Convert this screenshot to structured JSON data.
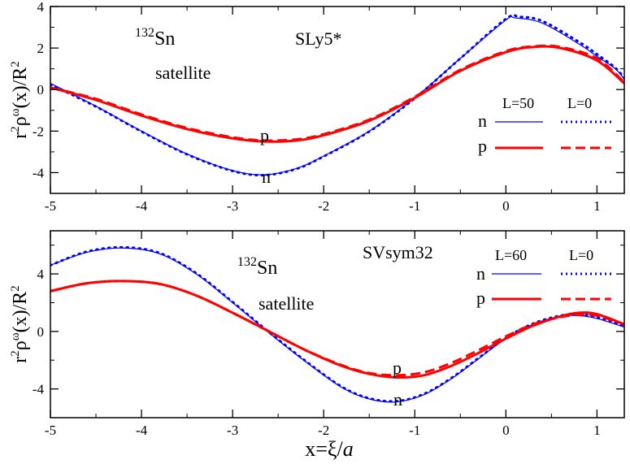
{
  "colors": {
    "neutron": "#0000ff",
    "proton": "#ff0000",
    "axis": "#000000"
  },
  "chart_data": [
    {
      "type": "line",
      "panel": "top",
      "nucleus": {
        "mass": "132",
        "symbol": "Sn"
      },
      "subtitle": "satellite",
      "force": "SLy5*",
      "ylabel": {
        "r": "r",
        "exp2": "2",
        "rho": "ρ",
        "omega": "ω",
        "rest": "(x)/R",
        "exp2b": "2"
      },
      "xlim": [
        -5,
        1.3
      ],
      "ylim": [
        -5,
        4
      ],
      "xticks": [
        -5,
        -4,
        -3,
        -2,
        -1,
        0,
        1
      ],
      "yticks": [
        -4,
        -2,
        0,
        2,
        4
      ],
      "xtick_labels": [
        "-5",
        "-4",
        "-3",
        "-2",
        "-1",
        "0",
        "1"
      ],
      "ytick_labels": [
        "-4",
        "-2",
        "0",
        "2",
        "4"
      ],
      "legend": {
        "header_solid": "L=50",
        "header_dotted": "L=0",
        "row_n": "n",
        "row_p": "p"
      },
      "curve_labels": {
        "p": "p",
        "n": "n"
      },
      "series": [
        {
          "name": "n L=50",
          "particle": "n",
          "style": "solid",
          "x": [
            -5.0,
            -4.5,
            -4.0,
            -3.5,
            -3.0,
            -2.65,
            -2.3,
            -2.0,
            -1.5,
            -1.0,
            -0.5,
            0.0,
            0.1,
            0.4,
            0.8,
            1.0,
            1.2,
            1.3
          ],
          "y": [
            0.3,
            -0.8,
            -2.0,
            -3.1,
            -3.9,
            -4.1,
            -3.8,
            -3.2,
            -2.0,
            -0.4,
            1.5,
            3.35,
            3.45,
            3.2,
            2.2,
            1.6,
            1.0,
            0.5
          ]
        },
        {
          "name": "n L=0",
          "particle": "n",
          "style": "dotted",
          "x": [
            -5.0,
            -4.5,
            -4.0,
            -3.5,
            -3.0,
            -2.65,
            -2.3,
            -2.0,
            -1.5,
            -1.0,
            -0.5,
            0.0,
            0.15,
            0.4,
            0.8,
            1.0,
            1.2,
            1.3
          ],
          "y": [
            0.25,
            -0.82,
            -2.02,
            -3.12,
            -3.92,
            -4.12,
            -3.82,
            -3.22,
            -2.02,
            -0.42,
            1.5,
            3.4,
            3.5,
            3.3,
            2.3,
            1.7,
            1.05,
            0.55
          ]
        },
        {
          "name": "p L=50",
          "particle": "p",
          "style": "solid",
          "x": [
            -5.0,
            -4.5,
            -4.0,
            -3.5,
            -3.0,
            -2.65,
            -2.3,
            -2.0,
            -1.5,
            -1.0,
            -0.5,
            0.0,
            0.3,
            0.6,
            1.0,
            1.3
          ],
          "y": [
            0.1,
            -0.5,
            -1.25,
            -1.9,
            -2.35,
            -2.5,
            -2.45,
            -2.2,
            -1.5,
            -0.4,
            0.9,
            1.8,
            2.05,
            2.0,
            1.4,
            0.3
          ]
        },
        {
          "name": "p L=0",
          "particle": "p",
          "style": "dashed",
          "x": [
            -5.0,
            -4.5,
            -4.0,
            -3.5,
            -3.0,
            -2.65,
            -2.3,
            -2.0,
            -1.5,
            -1.0,
            -0.5,
            0.0,
            0.3,
            0.6,
            1.0,
            1.3
          ],
          "y": [
            0.1,
            -0.45,
            -1.2,
            -1.85,
            -2.3,
            -2.45,
            -2.4,
            -2.15,
            -1.45,
            -0.35,
            0.95,
            1.85,
            2.08,
            2.05,
            1.5,
            0.35
          ]
        }
      ]
    },
    {
      "type": "line",
      "panel": "bottom",
      "nucleus": {
        "mass": "132",
        "symbol": "Sn"
      },
      "subtitle": "satellite",
      "force": "SVsym32",
      "ylabel": {
        "r": "r",
        "exp2": "2",
        "rho": "ρ",
        "omega": "ω",
        "rest": "(x)/R",
        "exp2b": "2"
      },
      "xlabel": {
        "lhs": "x=ξ/",
        "a": "a"
      },
      "xlim": [
        -5,
        1.3
      ],
      "ylim": [
        -6,
        7
      ],
      "xticks": [
        -5,
        -4,
        -3,
        -2,
        -1,
        0,
        1
      ],
      "yticks": [
        -4,
        0,
        4
      ],
      "xtick_labels": [
        "-5",
        "-4",
        "-3",
        "-2",
        "-1",
        "0",
        "1"
      ],
      "ytick_labels": [
        "-4",
        "0",
        "4"
      ],
      "legend": {
        "header_solid": "L=60",
        "header_dotted": "L=0",
        "row_n": "n",
        "row_p": "p"
      },
      "curve_labels": {
        "p": "p",
        "n": "n"
      },
      "series": [
        {
          "name": "n L=60",
          "particle": "n",
          "style": "solid",
          "x": [
            -5.0,
            -4.6,
            -4.2,
            -3.8,
            -3.4,
            -3.0,
            -2.6,
            -2.2,
            -1.8,
            -1.5,
            -1.2,
            -0.9,
            -0.6,
            -0.3,
            0.0,
            0.3,
            0.6,
            0.8,
            1.0,
            1.3
          ],
          "y": [
            4.6,
            5.5,
            5.8,
            5.4,
            4.0,
            2.0,
            -0.1,
            -2.1,
            -3.9,
            -4.7,
            -4.9,
            -4.4,
            -3.3,
            -1.9,
            -0.5,
            0.5,
            1.05,
            1.1,
            0.9,
            0.3
          ]
        },
        {
          "name": "n L=0",
          "particle": "n",
          "style": "dotted",
          "x": [
            -5.0,
            -4.6,
            -4.2,
            -3.8,
            -3.4,
            -3.0,
            -2.6,
            -2.2,
            -1.8,
            -1.5,
            -1.2,
            -0.9,
            -0.6,
            -0.3,
            0.0,
            0.3,
            0.6,
            0.8,
            1.0,
            1.3
          ],
          "y": [
            4.6,
            5.55,
            5.85,
            5.45,
            4.05,
            2.05,
            -0.05,
            -2.05,
            -3.85,
            -4.65,
            -4.85,
            -4.35,
            -3.25,
            -1.85,
            -0.45,
            0.55,
            1.1,
            1.2,
            1.0,
            0.4
          ]
        },
        {
          "name": "p L=60",
          "particle": "p",
          "style": "solid",
          "x": [
            -5.0,
            -4.6,
            -4.2,
            -3.8,
            -3.4,
            -3.0,
            -2.6,
            -2.2,
            -1.8,
            -1.5,
            -1.2,
            -0.9,
            -0.6,
            -0.3,
            0.0,
            0.3,
            0.6,
            0.8,
            1.0,
            1.3
          ],
          "y": [
            2.8,
            3.35,
            3.5,
            3.3,
            2.5,
            1.3,
            0.0,
            -1.3,
            -2.4,
            -2.95,
            -3.2,
            -3.05,
            -2.4,
            -1.5,
            -0.5,
            0.4,
            1.05,
            1.3,
            1.2,
            0.5
          ]
        },
        {
          "name": "p L=0",
          "particle": "p",
          "style": "dashed",
          "x": [
            -5.0,
            -4.6,
            -4.2,
            -3.8,
            -3.4,
            -3.0,
            -2.6,
            -2.2,
            -1.8,
            -1.5,
            -1.2,
            -0.9,
            -0.6,
            -0.3,
            0.0,
            0.3,
            0.6,
            0.8,
            1.0,
            1.3
          ],
          "y": [
            2.8,
            3.35,
            3.5,
            3.3,
            2.5,
            1.3,
            0.0,
            -1.3,
            -2.35,
            -2.9,
            -3.05,
            -2.85,
            -2.2,
            -1.3,
            -0.35,
            0.5,
            1.0,
            1.15,
            1.1,
            0.5
          ]
        }
      ]
    }
  ]
}
